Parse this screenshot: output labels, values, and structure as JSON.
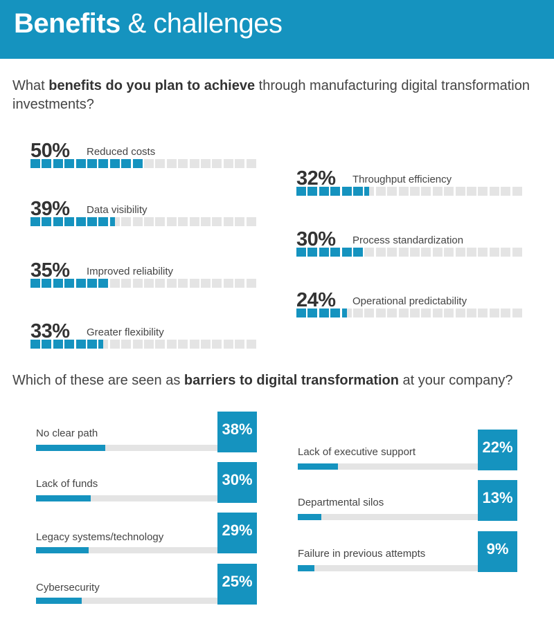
{
  "header": {
    "title_bold": "Benefits",
    "title_rest": "& challenges"
  },
  "benefits_question": {
    "pre": "What ",
    "bold": "benefits do you plan to achieve",
    "post": " through manufacturing digital transformation investments?"
  },
  "barriers_question": {
    "pre": "Which of these are seen as ",
    "bold": "barriers to digital transformation",
    "post": " at your company?"
  },
  "colors": {
    "accent": "#1593bf",
    "track": "#e4e4e4",
    "text": "#333333"
  },
  "chart_data": [
    {
      "type": "bar",
      "title": "What benefits do you plan to achieve through manufacturing digital transformation investments?",
      "categories": [
        "Reduced costs",
        "Data visibility",
        "Improved reliability",
        "Greater flexibility",
        "Throughput efficiency",
        "Process standardization",
        "Operational predictability"
      ],
      "values": [
        50,
        39,
        35,
        33,
        32,
        30,
        24
      ],
      "labels": [
        "50%",
        "39%",
        "35%",
        "33%",
        "32%",
        "30%",
        "24%"
      ],
      "unit": "%",
      "ylim": [
        0,
        100
      ]
    },
    {
      "type": "bar",
      "title": "Which of these are seen as barriers to digital transformation at your company?",
      "categories": [
        "No clear path",
        "Lack of funds",
        "Legacy systems/technology",
        "Cybersecurity",
        "Lack of executive support",
        "Departmental silos",
        "Failure in previous attempts"
      ],
      "values": [
        38,
        30,
        29,
        25,
        22,
        13,
        9
      ],
      "labels": [
        "38%",
        "30%",
        "29%",
        "25%",
        "22%",
        "13%",
        "9%"
      ],
      "unit": "%",
      "ylim": [
        0,
        100
      ]
    }
  ]
}
